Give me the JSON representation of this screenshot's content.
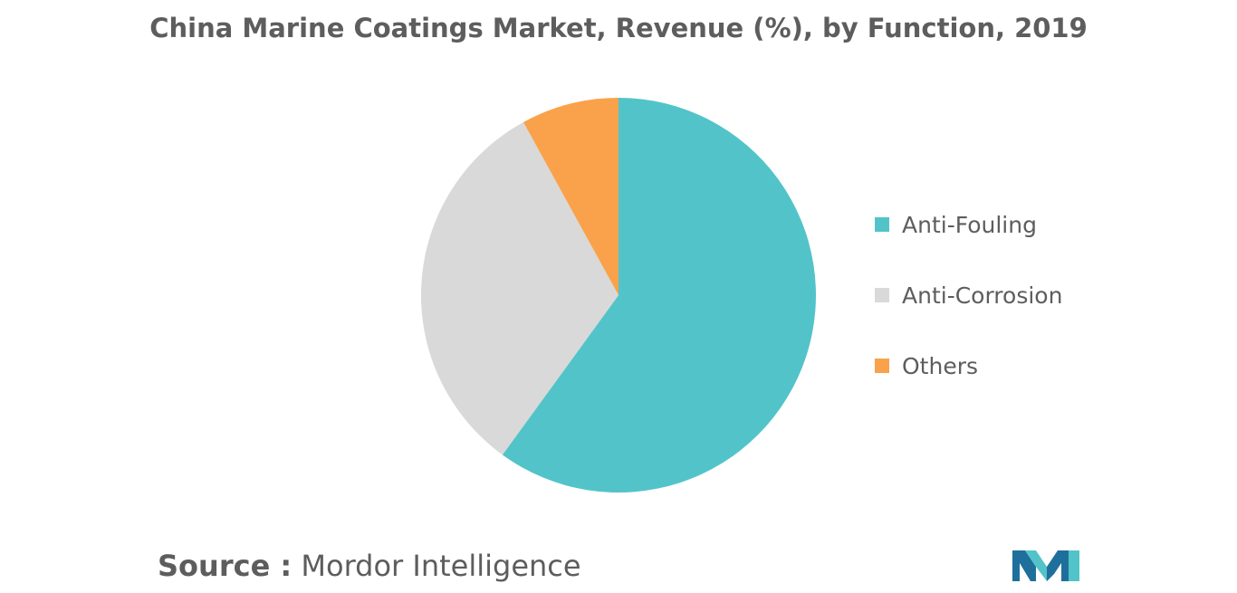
{
  "colors": {
    "text": "#5d5d5d",
    "background": "#ffffff"
  },
  "chart_data": {
    "type": "pie",
    "title": "China Marine Coatings Market, Revenue (%), by Function, 2019",
    "categories": [
      "Anti-Fouling",
      "Anti-Corrosion",
      "Others"
    ],
    "values": [
      60,
      32,
      8
    ],
    "colors": [
      "#52c4c9",
      "#d9d9d9",
      "#f9a24b"
    ],
    "start_angle_deg": 0,
    "direction": "clockwise",
    "legend_position": "right"
  },
  "legend": {
    "items": [
      {
        "label": "Anti-Fouling",
        "color": "#52c4c9"
      },
      {
        "label": "Anti-Corrosion",
        "color": "#d9d9d9"
      },
      {
        "label": "Others",
        "color": "#f9a24b"
      }
    ]
  },
  "source": {
    "prefix": "Source :",
    "name": " Mordor Intelligence"
  },
  "logo": {
    "icon": "mordor-intelligence-logo-icon",
    "colors": [
      "#1f6f9c",
      "#52c4c9"
    ]
  }
}
